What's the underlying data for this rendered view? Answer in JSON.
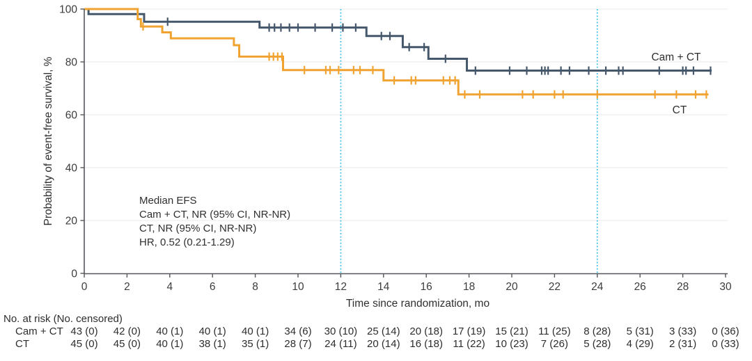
{
  "chart_data": {
    "type": "line",
    "subtype": "kaplan-meier-step",
    "title": "",
    "xlabel": "Time since randomization, mo",
    "ylabel": "Probability of event-free survival, %",
    "xlim": [
      0,
      30
    ],
    "ylim": [
      0,
      100
    ],
    "xticks": [
      0,
      2,
      4,
      6,
      8,
      10,
      12,
      14,
      16,
      18,
      20,
      22,
      24,
      26,
      28,
      30
    ],
    "yticks": [
      0,
      20,
      40,
      60,
      80,
      100
    ],
    "grid": "horizontal",
    "gridline_color": "#E9E9E9",
    "axis_color": "#55565A",
    "tick_label_color": "#3C3C3C",
    "reference_lines_x": [
      12,
      24
    ],
    "reference_line_color": "#4CC4EC",
    "annotation_lines": [
      "Median EFS",
      "Cam + CT, NR (95% CI, NR-NR)",
      "CT, NR (95% CI, NR-NR)",
      "HR, 0.52 (0.21-1.29)"
    ],
    "series": [
      {
        "name": "Cam + CT",
        "color": "#45586B",
        "steps": [
          [
            0,
            100
          ],
          [
            0.2,
            98.1
          ],
          [
            2.8,
            95.2
          ],
          [
            8.2,
            93.0
          ],
          [
            13.2,
            89.8
          ],
          [
            14.9,
            85.6
          ],
          [
            16.1,
            81.2
          ],
          [
            17.9,
            76.7
          ],
          [
            29.35,
            76.7
          ]
        ],
        "censor_times": [
          3.9,
          8.65,
          8.9,
          9.2,
          9.6,
          10.0,
          10.8,
          11.6,
          12.1,
          12.7,
          13.9,
          14.3,
          15.2,
          15.9,
          16.9,
          18.3,
          19.9,
          20.7,
          21.4,
          21.55,
          21.7,
          22.3,
          22.7,
          23.6,
          24.4,
          25.0,
          25.2,
          26.9,
          28.0,
          28.15,
          28.5,
          29.3
        ]
      },
      {
        "name": "CT",
        "color": "#F0A330",
        "steps": [
          [
            0,
            100
          ],
          [
            2.5,
            96.2
          ],
          [
            2.65,
            93.4
          ],
          [
            3.65,
            91.2
          ],
          [
            4.05,
            88.9
          ],
          [
            7.0,
            86.3
          ],
          [
            7.25,
            82.0
          ],
          [
            9.3,
            76.9
          ],
          [
            14.0,
            73.0
          ],
          [
            17.5,
            67.7
          ],
          [
            29.2,
            67.7
          ]
        ],
        "censor_times": [
          2.75,
          8.65,
          8.85,
          9.05,
          9.25,
          10.3,
          11.3,
          11.5,
          11.9,
          12.6,
          12.9,
          13.5,
          14.5,
          15.3,
          15.5,
          16.8,
          17.1,
          17.35,
          17.8,
          18.5,
          20.5,
          21.0,
          22.0,
          22.4,
          24.0,
          26.7,
          27.7,
          28.6,
          29.1
        ]
      }
    ],
    "legend_labels": {
      "cam_ct": "Cam + CT",
      "ct": "CT"
    },
    "legend_position": "right-of-curves"
  },
  "risk_table": {
    "title": "No. at risk (No. censored)",
    "times": [
      0,
      2,
      4,
      6,
      8,
      10,
      12,
      14,
      16,
      18,
      20,
      22,
      24,
      26,
      28,
      30
    ],
    "rows": [
      {
        "label": "Cam + CT",
        "values": [
          "43 (0)",
          "42 (0)",
          "40 (1)",
          "40 (1)",
          "40 (1)",
          "34 (6)",
          "30 (10)",
          "25 (14)",
          "20 (18)",
          "17 (19)",
          "15 (21)",
          "11 (25)",
          "8 (28)",
          "5 (31)",
          "3 (33)",
          "0 (36)"
        ]
      },
      {
        "label": "CT",
        "values": [
          "45 (0)",
          "45 (0)",
          "40 (1)",
          "38 (1)",
          "35 (1)",
          "28 (7)",
          "24 (11)",
          "20 (14)",
          "16 (18)",
          "11 (22)",
          "10 (23)",
          "7 (26)",
          "5 (28)",
          "4 (29)",
          "2 (31)",
          "0 (33)"
        ]
      }
    ]
  }
}
